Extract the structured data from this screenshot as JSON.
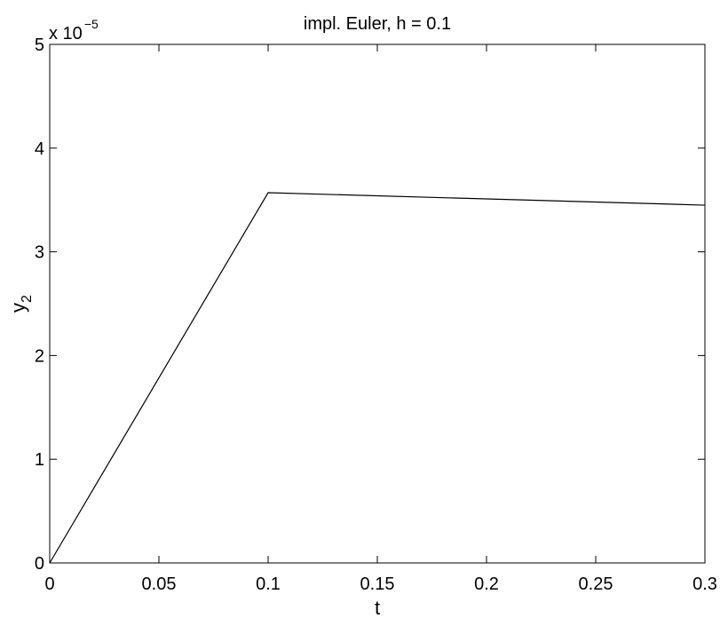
{
  "chart_data": {
    "type": "line",
    "title": "impl. Euler, h = 0.1",
    "xlabel": "t",
    "ylabel_base": "y",
    "ylabel_sub": "2",
    "y_scale_base": "x 10",
    "y_scale_exponent": "−5",
    "xlim": [
      0,
      0.3
    ],
    "ylim": [
      0,
      5
    ],
    "grid": false,
    "x_ticks": [
      {
        "value": 0,
        "label": "0"
      },
      {
        "value": 0.05,
        "label": "0.05"
      },
      {
        "value": 0.1,
        "label": "0.1"
      },
      {
        "value": 0.15,
        "label": "0.15"
      },
      {
        "value": 0.2,
        "label": "0.2"
      },
      {
        "value": 0.25,
        "label": "0.25"
      },
      {
        "value": 0.3,
        "label": "0.3"
      }
    ],
    "y_ticks": [
      {
        "value": 0,
        "label": "0"
      },
      {
        "value": 1,
        "label": "1"
      },
      {
        "value": 2,
        "label": "2"
      },
      {
        "value": 3,
        "label": "3"
      },
      {
        "value": 4,
        "label": "4"
      },
      {
        "value": 5,
        "label": "5"
      }
    ],
    "series": [
      {
        "color": "#000000",
        "x": [
          0,
          0.1,
          0.2,
          0.3
        ],
        "y": [
          0,
          3.57,
          3.51,
          3.45
        ]
      }
    ]
  }
}
